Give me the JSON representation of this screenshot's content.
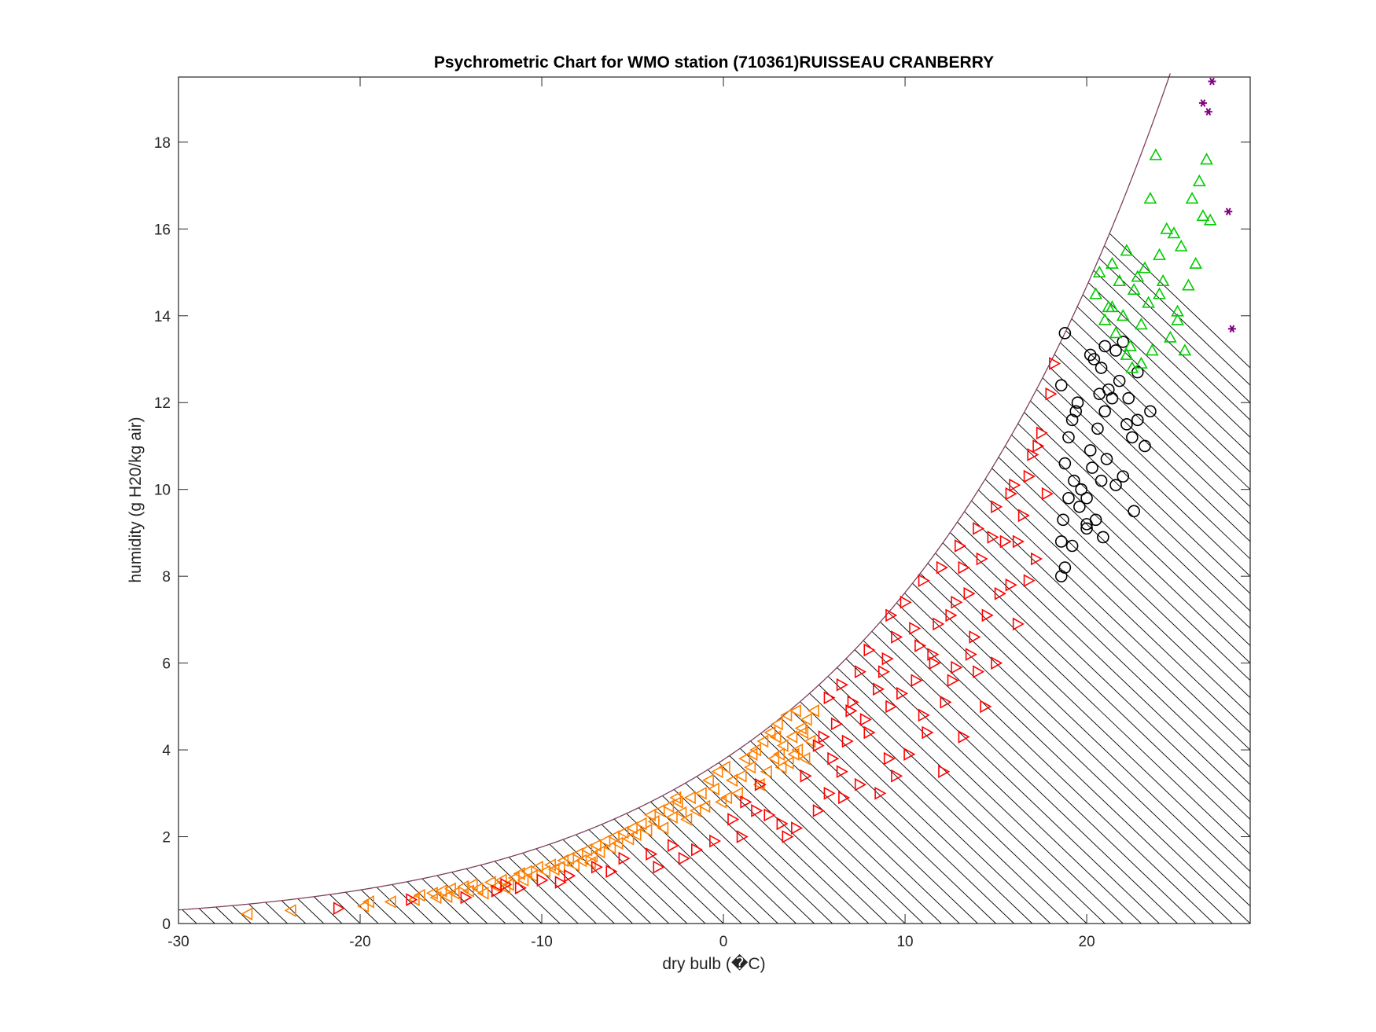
{
  "chart_data": {
    "type": "scatter",
    "title": "Psychrometric Chart for WMO station (710361)RUISSEAU CRANBERRY",
    "xlabel": "dry bulb (�C)",
    "ylabel": "humidity (g H20/kg air)",
    "xlim": [
      -30,
      29
    ],
    "ylim": [
      0,
      19.5
    ],
    "xticks": [
      -30,
      -20,
      -10,
      0,
      10,
      20
    ],
    "yticks": [
      0,
      2,
      4,
      6,
      8,
      10,
      12,
      14,
      16,
      18
    ],
    "grid": false,
    "saturation_curve_color": "#7f3f5f",
    "enthalpy_line_color": "#000000",
    "series": [
      {
        "marker": "triangle-left",
        "color": "#ff8000",
        "points": [
          [
            -26.2,
            0.22
          ],
          [
            -23.8,
            0.3
          ],
          [
            -19.8,
            0.4
          ],
          [
            -19.5,
            0.5
          ],
          [
            -18.3,
            0.5
          ],
          [
            -17.0,
            0.55
          ],
          [
            -16.7,
            0.65
          ],
          [
            -16.0,
            0.7
          ],
          [
            -15.8,
            0.6
          ],
          [
            -15.5,
            0.75
          ],
          [
            -15.2,
            0.62
          ],
          [
            -15.0,
            0.8
          ],
          [
            -14.8,
            0.7
          ],
          [
            -14.3,
            0.85
          ],
          [
            -14.0,
            0.75
          ],
          [
            -13.8,
            0.9
          ],
          [
            -13.5,
            0.8
          ],
          [
            -13.2,
            0.7
          ],
          [
            -12.8,
            0.95
          ],
          [
            -12.5,
            0.85
          ],
          [
            -12.2,
            1.0
          ],
          [
            -11.8,
            0.9
          ],
          [
            -11.5,
            1.05
          ],
          [
            -11.2,
            1.15
          ],
          [
            -11.0,
            1.0
          ],
          [
            -10.8,
            1.2
          ],
          [
            -10.5,
            1.1
          ],
          [
            -10.2,
            1.3
          ],
          [
            -9.8,
            1.2
          ],
          [
            -9.5,
            1.35
          ],
          [
            -9.0,
            1.3
          ],
          [
            -8.8,
            1.45
          ],
          [
            -8.5,
            1.5
          ],
          [
            -8.2,
            1.35
          ],
          [
            -8.0,
            1.6
          ],
          [
            -7.8,
            1.45
          ],
          [
            -7.5,
            1.7
          ],
          [
            -7.2,
            1.55
          ],
          [
            -7.0,
            1.8
          ],
          [
            -6.8,
            1.65
          ],
          [
            -6.5,
            1.9
          ],
          [
            -6.2,
            1.75
          ],
          [
            -6.0,
            2.0
          ],
          [
            -5.8,
            1.85
          ],
          [
            -5.5,
            2.1
          ],
          [
            -5.2,
            1.95
          ],
          [
            -5.0,
            2.2
          ],
          [
            -4.8,
            2.05
          ],
          [
            -4.5,
            2.3
          ],
          [
            -4.2,
            2.15
          ],
          [
            -4.0,
            2.5
          ],
          [
            -3.8,
            2.35
          ],
          [
            -3.5,
            2.6
          ],
          [
            -3.3,
            2.2
          ],
          [
            -3.0,
            2.7
          ],
          [
            -2.8,
            2.45
          ],
          [
            -2.5,
            2.8
          ],
          [
            -2.3,
            2.55
          ],
          [
            -2.0,
            2.4
          ],
          [
            -1.8,
            2.9
          ],
          [
            -1.5,
            2.6
          ],
          [
            -1.2,
            3.0
          ],
          [
            -1.0,
            2.7
          ],
          [
            -0.8,
            3.3
          ],
          [
            -0.5,
            3.1
          ],
          [
            -0.3,
            3.5
          ],
          [
            -0.1,
            2.8
          ],
          [
            0.1,
            3.6
          ],
          [
            0.2,
            2.9
          ],
          [
            0.5,
            3.3
          ],
          [
            0.8,
            3.0
          ],
          [
            1.0,
            3.4
          ],
          [
            1.2,
            3.8
          ],
          [
            1.5,
            3.6
          ],
          [
            1.8,
            4.0
          ],
          [
            2.0,
            3.2
          ],
          [
            2.2,
            4.2
          ],
          [
            2.4,
            3.5
          ],
          [
            2.6,
            4.4
          ],
          [
            2.8,
            3.8
          ],
          [
            3.0,
            4.6
          ],
          [
            3.1,
            3.9
          ],
          [
            3.3,
            4.1
          ],
          [
            3.5,
            4.8
          ],
          [
            3.6,
            3.7
          ],
          [
            3.8,
            4.3
          ],
          [
            4.0,
            4.9
          ],
          [
            4.1,
            4.0
          ],
          [
            4.3,
            4.5
          ],
          [
            4.5,
            3.8
          ],
          [
            4.6,
            4.7
          ],
          [
            4.8,
            4.2
          ],
          [
            5.0,
            4.9
          ],
          [
            3.2,
            3.6
          ],
          [
            3.9,
            3.9
          ],
          [
            2.9,
            4.3
          ],
          [
            4.4,
            4.4
          ],
          [
            1.6,
            3.9
          ],
          [
            -2.6,
            2.9
          ],
          [
            -9.3,
            1.25
          ],
          [
            -12.0,
            0.82
          ],
          [
            -7.3,
            1.4
          ]
        ]
      },
      {
        "marker": "triangle-right",
        "color": "#ff0000",
        "points": [
          [
            -21.2,
            0.35
          ],
          [
            -17.2,
            0.55
          ],
          [
            -14.2,
            0.6
          ],
          [
            -12.5,
            0.75
          ],
          [
            -12.0,
            0.9
          ],
          [
            -10.0,
            1.0
          ],
          [
            -8.5,
            1.1
          ],
          [
            -7.0,
            1.3
          ],
          [
            -5.5,
            1.5
          ],
          [
            -4.0,
            1.6
          ],
          [
            -2.8,
            1.8
          ],
          [
            -1.5,
            1.7
          ],
          [
            0.5,
            2.4
          ],
          [
            1.2,
            2.8
          ],
          [
            1.8,
            2.6
          ],
          [
            2.5,
            2.5
          ],
          [
            3.2,
            2.3
          ],
          [
            4.0,
            2.2
          ],
          [
            5.2,
            2.6
          ],
          [
            5.8,
            3.0
          ],
          [
            6.5,
            3.5
          ],
          [
            6.0,
            3.8
          ],
          [
            5.5,
            4.3
          ],
          [
            6.2,
            4.6
          ],
          [
            5.8,
            5.2
          ],
          [
            6.5,
            5.5
          ],
          [
            7.0,
            4.9
          ],
          [
            7.5,
            5.8
          ],
          [
            8.0,
            6.3
          ],
          [
            8.5,
            5.4
          ],
          [
            9.0,
            6.1
          ],
          [
            9.5,
            6.6
          ],
          [
            9.2,
            7.1
          ],
          [
            10.0,
            7.4
          ],
          [
            10.5,
            6.8
          ],
          [
            11.0,
            7.9
          ],
          [
            11.5,
            6.2
          ],
          [
            12.0,
            8.2
          ],
          [
            12.5,
            7.1
          ],
          [
            13.0,
            8.7
          ],
          [
            13.5,
            7.6
          ],
          [
            14.0,
            9.1
          ],
          [
            14.2,
            8.4
          ],
          [
            15.0,
            9.6
          ],
          [
            15.5,
            8.8
          ],
          [
            16.0,
            10.1
          ],
          [
            16.5,
            9.4
          ],
          [
            17.0,
            10.8
          ],
          [
            17.5,
            11.3
          ],
          [
            17.8,
            9.9
          ],
          [
            18.0,
            12.2
          ],
          [
            18.2,
            12.9
          ],
          [
            17.2,
            8.4
          ],
          [
            16.2,
            8.8
          ],
          [
            15.2,
            7.6
          ],
          [
            14.5,
            7.1
          ],
          [
            13.8,
            6.6
          ],
          [
            12.8,
            5.9
          ],
          [
            12.2,
            5.1
          ],
          [
            11.2,
            4.4
          ],
          [
            10.2,
            3.9
          ],
          [
            9.5,
            3.4
          ],
          [
            8.6,
            3.0
          ],
          [
            7.5,
            3.2
          ],
          [
            6.8,
            4.2
          ],
          [
            7.8,
            4.7
          ],
          [
            8.8,
            5.8
          ],
          [
            9.8,
            5.3
          ],
          [
            10.8,
            6.4
          ],
          [
            11.8,
            6.9
          ],
          [
            12.8,
            7.4
          ],
          [
            13.2,
            8.2
          ],
          [
            14.8,
            8.9
          ],
          [
            15.8,
            9.9
          ],
          [
            16.8,
            10.3
          ],
          [
            17.3,
            11.0
          ],
          [
            5.2,
            4.1
          ],
          [
            6.6,
            2.9
          ],
          [
            4.5,
            3.4
          ],
          [
            3.5,
            2.0
          ],
          [
            2.0,
            3.2
          ],
          [
            1.0,
            2.0
          ],
          [
            -0.5,
            1.9
          ],
          [
            -2.2,
            1.5
          ],
          [
            -3.6,
            1.3
          ],
          [
            -6.2,
            1.2
          ],
          [
            -9.0,
            0.95
          ],
          [
            -11.2,
            0.82
          ],
          [
            13.2,
            4.3
          ],
          [
            12.1,
            3.5
          ],
          [
            11.0,
            4.8
          ],
          [
            9.1,
            3.8
          ],
          [
            8.0,
            4.4
          ],
          [
            7.1,
            5.1
          ],
          [
            10.6,
            5.6
          ],
          [
            11.6,
            6.0
          ],
          [
            13.6,
            6.2
          ],
          [
            14.4,
            5.0
          ],
          [
            15.0,
            6.0
          ],
          [
            16.2,
            6.9
          ],
          [
            15.8,
            7.8
          ],
          [
            16.8,
            7.9
          ],
          [
            14.0,
            5.8
          ],
          [
            12.6,
            5.6
          ],
          [
            9.2,
            5.0
          ]
        ]
      },
      {
        "marker": "circle",
        "color": "#000000",
        "points": [
          [
            18.8,
            13.6
          ],
          [
            18.6,
            12.4
          ],
          [
            19.2,
            11.6
          ],
          [
            19.0,
            11.2
          ],
          [
            19.5,
            12.0
          ],
          [
            18.8,
            10.6
          ],
          [
            19.3,
            10.2
          ],
          [
            19.0,
            9.8
          ],
          [
            18.7,
            9.3
          ],
          [
            18.6,
            8.8
          ],
          [
            18.8,
            8.2
          ],
          [
            18.6,
            8.0
          ],
          [
            19.2,
            8.7
          ],
          [
            19.6,
            9.6
          ],
          [
            20.0,
            9.8
          ],
          [
            20.0,
            9.2
          ],
          [
            20.0,
            9.1
          ],
          [
            20.5,
            9.3
          ],
          [
            20.9,
            8.9
          ],
          [
            20.2,
            10.9
          ],
          [
            20.6,
            11.4
          ],
          [
            21.0,
            11.8
          ],
          [
            21.4,
            12.1
          ],
          [
            21.8,
            12.5
          ],
          [
            21.2,
            12.3
          ],
          [
            20.8,
            12.8
          ],
          [
            20.4,
            13.0
          ],
          [
            20.2,
            13.1
          ],
          [
            21.0,
            13.3
          ],
          [
            21.6,
            13.2
          ],
          [
            22.0,
            13.4
          ],
          [
            22.2,
            11.5
          ],
          [
            22.5,
            11.2
          ],
          [
            22.8,
            11.6
          ],
          [
            23.2,
            11.0
          ],
          [
            23.5,
            11.8
          ],
          [
            22.0,
            10.3
          ],
          [
            21.6,
            10.1
          ],
          [
            20.8,
            10.2
          ],
          [
            22.6,
            9.5
          ],
          [
            22.8,
            12.7
          ],
          [
            22.3,
            12.1
          ],
          [
            19.7,
            10.0
          ],
          [
            20.3,
            10.5
          ],
          [
            21.1,
            10.7
          ],
          [
            19.4,
            11.8
          ],
          [
            20.7,
            12.2
          ]
        ]
      },
      {
        "marker": "triangle-up",
        "color": "#00cc00",
        "points": [
          [
            20.5,
            14.5
          ],
          [
            20.7,
            15.0
          ],
          [
            21.0,
            13.9
          ],
          [
            21.2,
            14.2
          ],
          [
            21.4,
            15.2
          ],
          [
            21.6,
            13.6
          ],
          [
            21.8,
            14.8
          ],
          [
            22.0,
            14.0
          ],
          [
            22.2,
            15.5
          ],
          [
            22.4,
            13.3
          ],
          [
            22.6,
            14.6
          ],
          [
            22.8,
            14.9
          ],
          [
            23.0,
            13.8
          ],
          [
            23.2,
            15.1
          ],
          [
            23.4,
            14.3
          ],
          [
            23.5,
            16.7
          ],
          [
            23.6,
            13.2
          ],
          [
            23.8,
            17.7
          ],
          [
            24.0,
            15.4
          ],
          [
            24.2,
            14.8
          ],
          [
            24.4,
            16.0
          ],
          [
            24.6,
            13.5
          ],
          [
            24.8,
            15.9
          ],
          [
            25.0,
            14.1
          ],
          [
            25.2,
            15.6
          ],
          [
            25.4,
            13.2
          ],
          [
            25.6,
            14.7
          ],
          [
            25.8,
            16.7
          ],
          [
            26.0,
            15.2
          ],
          [
            26.2,
            17.1
          ],
          [
            26.4,
            16.3
          ],
          [
            26.6,
            17.6
          ],
          [
            26.8,
            16.2
          ],
          [
            22.5,
            12.8
          ],
          [
            23.0,
            12.9
          ],
          [
            21.4,
            14.2
          ],
          [
            24.0,
            14.5
          ],
          [
            25.0,
            13.9
          ],
          [
            22.2,
            13.1
          ]
        ]
      },
      {
        "marker": "asterisk",
        "color": "#800080",
        "points": [
          [
            26.9,
            19.4
          ],
          [
            26.4,
            18.9
          ],
          [
            26.7,
            18.7
          ],
          [
            27.8,
            16.4
          ],
          [
            28.0,
            13.7
          ]
        ]
      }
    ]
  }
}
